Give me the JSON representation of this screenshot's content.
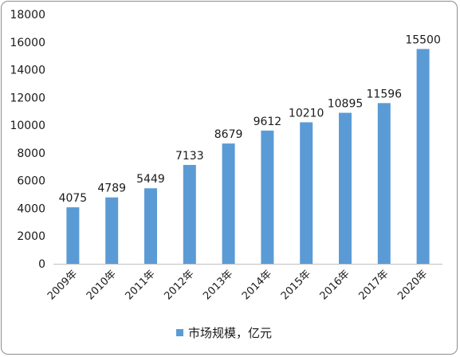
{
  "chart_data": {
    "type": "bar",
    "categories": [
      "2009年",
      "2010年",
      "2011年",
      "2012年",
      "2013年",
      "2014年",
      "2015年",
      "2016年",
      "2017年",
      "2020年"
    ],
    "series": [
      {
        "name": "市场规模，亿元",
        "values": [
          4075,
          4789,
          5449,
          7133,
          8679,
          9612,
          10210,
          10895,
          11596,
          15500
        ],
        "color": "#5b9bd5"
      }
    ],
    "ylim": [
      0,
      18000
    ],
    "yticks": [
      "0",
      "2000",
      "4000",
      "6000",
      "8000",
      "10000",
      "12000",
      "14000",
      "16000",
      "18000"
    ],
    "data_labels": [
      "4075",
      "4789",
      "5449",
      "7133",
      "8679",
      "9612",
      "10210",
      "10895",
      "11596",
      "15500"
    ],
    "grid": false,
    "legend": "bottom"
  }
}
